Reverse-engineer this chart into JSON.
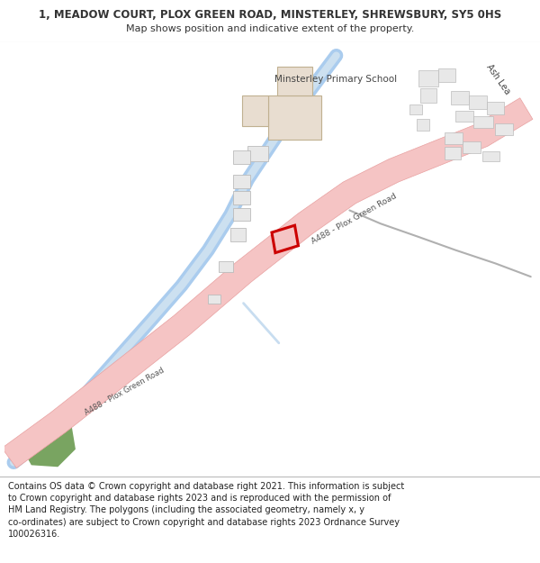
{
  "title": "1, MEADOW COURT, PLOX GREEN ROAD, MINSTERLEY, SHREWSBURY, SY5 0HS",
  "subtitle": "Map shows position and indicative extent of the property.",
  "footer": "Contains OS data © Crown copyright and database right 2021. This information is subject to Crown copyright and database rights 2023 and is reproduced with the permission of HM Land Registry. The polygons (including the associated geometry, namely x, y co-ordinates) are subject to Crown copyright and database rights 2023 Ordnance Survey 100026316.",
  "map_bg": "#ffffff",
  "road_color": "#f5c4c4",
  "road_edge_color": "#e8a0a0",
  "river_color": "#aaccee",
  "river_light": "#cce0f0",
  "building_fill": "#e8ddd0",
  "building_edge": "#c0b090",
  "small_building_fill": "#e8e8e8",
  "small_building_edge": "#bbbbbb",
  "highlight_color": "#cc0000",
  "green_patch_color": "#6a9a50",
  "text_color": "#333333",
  "road_label": "A488 - Plox Green Road",
  "school_label": "Minsterley Primary School",
  "ash_lea_label": "Ash Lea",
  "title_fontsize": 8.5,
  "subtitle_fontsize": 8.0,
  "footer_fontsize": 7.0
}
